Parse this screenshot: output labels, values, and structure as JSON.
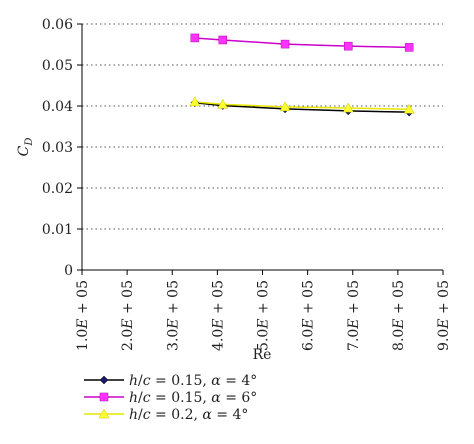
{
  "chart_data": {
    "type": "line",
    "xlabel": "Re",
    "ylabel_main": "C",
    "ylabel_sub": "D",
    "xlim": [
      100000,
      900000
    ],
    "ylim": [
      0,
      0.06
    ],
    "x_ticks": [
      100000,
      200000,
      300000,
      400000,
      500000,
      600000,
      700000,
      800000,
      900000
    ],
    "x_tick_labels": [
      [
        "1.0",
        "E",
        " + 05"
      ],
      [
        "2.0",
        "E",
        " + 05"
      ],
      [
        "3.0",
        "E",
        " + 05"
      ],
      [
        "4.0",
        "E",
        " + 05"
      ],
      [
        "5.0",
        "E",
        " + 05"
      ],
      [
        "6.0",
        "E",
        " + 05"
      ],
      [
        "7.0",
        "E",
        " + 05"
      ],
      [
        "8.0",
        "E",
        " + 05"
      ],
      [
        "9.0",
        "E",
        " + 05"
      ]
    ],
    "y_ticks": [
      0,
      0.01,
      0.02,
      0.03,
      0.04,
      0.05,
      0.06
    ],
    "y_tick_labels": [
      "0",
      "0.01",
      "0.02",
      "0.03",
      "0.04",
      "0.05",
      "0.06"
    ],
    "grid": "horizontal dotted",
    "legend_placement": "bottom-left, below the plot",
    "series": [
      {
        "legend_parts": [
          [
            "h",
            true
          ],
          [
            "/",
            false
          ],
          [
            "c",
            true
          ],
          [
            " = 0.15, ",
            false
          ],
          [
            "α",
            true
          ],
          [
            " = 4°",
            false
          ]
        ],
        "color": "#000000",
        "marker": "diamond",
        "marker_color": "#1a1a6e",
        "x": [
          350000,
          412000,
          550000,
          690000,
          825000
        ],
        "y": [
          0.0408,
          0.0401,
          0.0393,
          0.0388,
          0.0385
        ]
      },
      {
        "legend_parts": [
          [
            "h",
            true
          ],
          [
            "/",
            false
          ],
          [
            "c",
            true
          ],
          [
            " = 0.15, ",
            false
          ],
          [
            "α",
            true
          ],
          [
            " = 6°",
            false
          ]
        ],
        "color": "#cc00cc",
        "marker": "square",
        "marker_color": "#ff33ff",
        "x": [
          350000,
          412000,
          550000,
          690000,
          825000
        ],
        "y": [
          0.0566,
          0.0561,
          0.0551,
          0.0546,
          0.0543
        ]
      },
      {
        "legend_parts": [
          [
            "h",
            true
          ],
          [
            "/",
            false
          ],
          [
            "c",
            true
          ],
          [
            " = 0.2, ",
            false
          ],
          [
            "α",
            true
          ],
          [
            " = 4°",
            false
          ]
        ],
        "color": "#e6e600",
        "marker": "triangle",
        "marker_color": "#ffff33",
        "x": [
          350000,
          412000,
          550000,
          690000,
          825000
        ],
        "y": [
          0.041,
          0.0404,
          0.0398,
          0.0395,
          0.0392
        ]
      }
    ]
  }
}
